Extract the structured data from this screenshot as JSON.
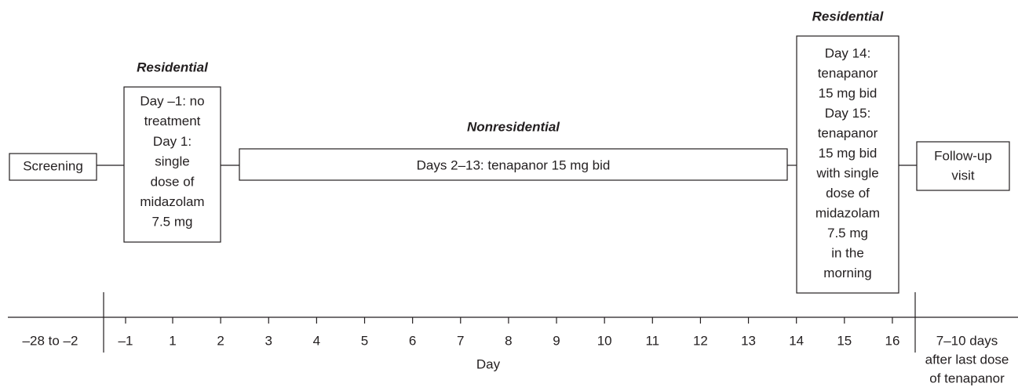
{
  "phases": [
    {
      "lines": [
        "Screening"
      ]
    },
    {
      "label": "Residential",
      "lines": [
        "Day –1: no",
        "treatment",
        "Day 1:",
        "single",
        "dose of",
        "midazolam",
        "7.5 mg"
      ]
    },
    {
      "label": "Nonresidential",
      "lines": [
        "Days 2–13: tenapanor 15 mg bid"
      ]
    },
    {
      "label": "Residential",
      "lines": [
        "Day 14:",
        "tenapanor",
        "15 mg bid",
        "Day 15:",
        "tenapanor",
        "15 mg bid",
        "with single",
        "dose of",
        "midazolam",
        "7.5 mg",
        "in the",
        "morning"
      ]
    },
    {
      "lines": [
        "Follow-up",
        "visit"
      ]
    }
  ],
  "timeline": {
    "start_label": "–28 to –2",
    "ticks": [
      "–1",
      "1",
      "2",
      "3",
      "4",
      "5",
      "6",
      "7",
      "8",
      "9",
      "10",
      "11",
      "12",
      "13",
      "14",
      "15",
      "16"
    ],
    "end_label": [
      "7–10 days",
      "after last dose",
      "of tenapanor"
    ],
    "axis_label": "Day"
  }
}
